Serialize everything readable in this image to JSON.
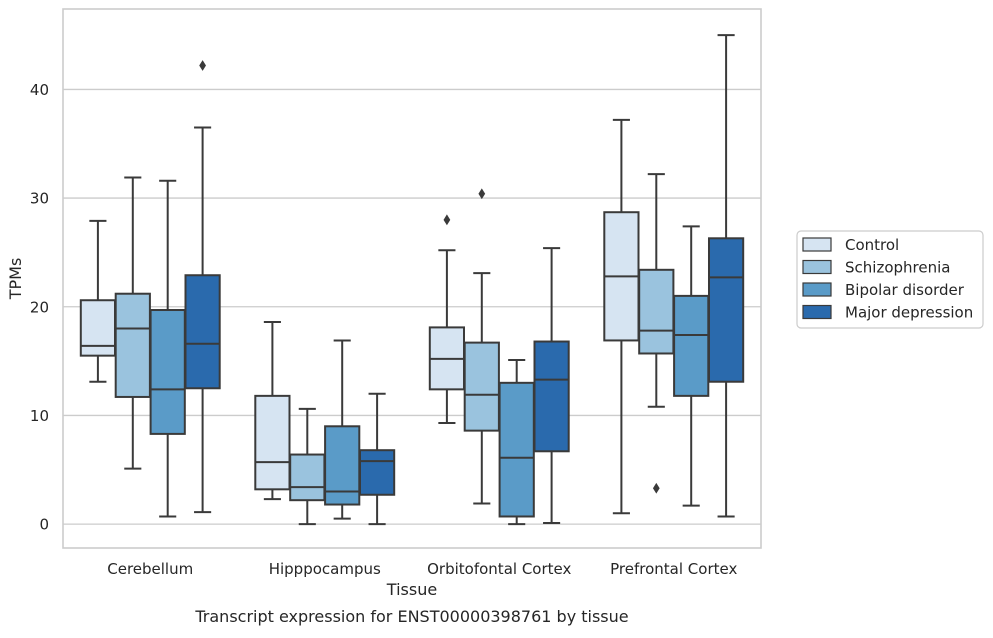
{
  "chart_data": {
    "type": "box",
    "caption": "Transcript expression for ENST00000398761 by tissue",
    "xlabel": "Tissue",
    "ylabel": "TPMs",
    "ylim": [
      -2.2,
      47.4
    ],
    "yticks": [
      0,
      10,
      20,
      30,
      40
    ],
    "grid": "horizontal",
    "legend_position": "right",
    "categories": [
      "Cerebellum",
      "Hipppocampus",
      "Orbitofontal Cortex",
      "Prefrontal Cortex"
    ],
    "series": [
      {
        "name": "Control",
        "color": "#d6e4f2",
        "boxes": [
          {
            "whislo": 13.1,
            "q1": 15.5,
            "med": 16.4,
            "q3": 20.6,
            "whishi": 27.9,
            "fliers": []
          },
          {
            "whislo": 2.3,
            "q1": 3.2,
            "med": 5.7,
            "q3": 11.8,
            "whishi": 18.6,
            "fliers": []
          },
          {
            "whislo": 9.3,
            "q1": 12.4,
            "med": 15.2,
            "q3": 18.1,
            "whishi": 25.2,
            "fliers": [
              28.0
            ]
          },
          {
            "whislo": 1.0,
            "q1": 16.9,
            "med": 22.8,
            "q3": 28.7,
            "whishi": 37.2,
            "fliers": []
          }
        ]
      },
      {
        "name": "Schizophrenia",
        "color": "#9ac3de",
        "boxes": [
          {
            "whislo": 5.1,
            "q1": 11.7,
            "med": 18.0,
            "q3": 21.2,
            "whishi": 31.9,
            "fliers": []
          },
          {
            "whislo": 0.0,
            "q1": 2.2,
            "med": 3.4,
            "q3": 6.4,
            "whishi": 10.6,
            "fliers": []
          },
          {
            "whislo": 1.9,
            "q1": 8.6,
            "med": 11.9,
            "q3": 16.7,
            "whishi": 23.1,
            "fliers": [
              30.4
            ]
          },
          {
            "whislo": 10.8,
            "q1": 15.7,
            "med": 17.8,
            "q3": 23.4,
            "whishi": 32.2,
            "fliers": [
              3.3
            ]
          }
        ]
      },
      {
        "name": "Bipolar disorder",
        "color": "#5a9bc8",
        "boxes": [
          {
            "whislo": 0.7,
            "q1": 8.3,
            "med": 12.4,
            "q3": 19.7,
            "whishi": 31.6,
            "fliers": []
          },
          {
            "whislo": 0.5,
            "q1": 1.8,
            "med": 3.0,
            "q3": 9.0,
            "whishi": 16.9,
            "fliers": []
          },
          {
            "whislo": 0.0,
            "q1": 0.7,
            "med": 6.1,
            "q3": 13.0,
            "whishi": 15.1,
            "fliers": []
          },
          {
            "whislo": 1.7,
            "q1": 11.8,
            "med": 17.4,
            "q3": 21.0,
            "whishi": 27.4,
            "fliers": []
          }
        ]
      },
      {
        "name": "Major depression",
        "color": "#2a6aad",
        "boxes": [
          {
            "whislo": 1.1,
            "q1": 12.5,
            "med": 16.6,
            "q3": 22.9,
            "whishi": 36.5,
            "fliers": [
              42.2
            ]
          },
          {
            "whislo": 0.0,
            "q1": 2.7,
            "med": 5.8,
            "q3": 6.8,
            "whishi": 12.0,
            "fliers": []
          },
          {
            "whislo": 0.1,
            "q1": 6.7,
            "med": 13.3,
            "q3": 16.8,
            "whishi": 25.4,
            "fliers": []
          },
          {
            "whislo": 0.7,
            "q1": 13.1,
            "med": 22.7,
            "q3": 26.3,
            "whishi": 45.0,
            "fliers": []
          }
        ]
      }
    ]
  }
}
